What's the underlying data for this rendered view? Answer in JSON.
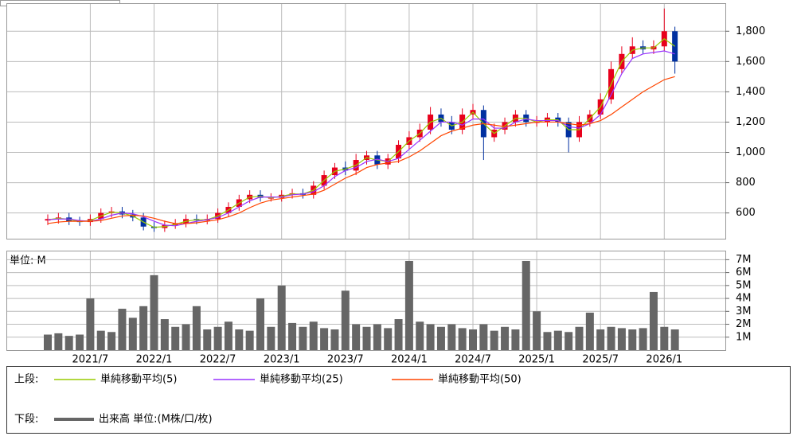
{
  "chart_data": [
    {
      "type": "candlestick",
      "categories": [
        null,
        null,
        null,
        null,
        "2021/7",
        null,
        null,
        null,
        null,
        null,
        "2022/1",
        null,
        null,
        null,
        null,
        null,
        "2022/7",
        null,
        null,
        null,
        null,
        null,
        "2023/1",
        null,
        null,
        null,
        null,
        null,
        "2023/7",
        null,
        null,
        null,
        null,
        null,
        "2024/1",
        null,
        null,
        null,
        null,
        null,
        "2024/7",
        null,
        null,
        null,
        null,
        null,
        "2025/1",
        null,
        null,
        null,
        null,
        null,
        "2025/7",
        null,
        null,
        null,
        null,
        null,
        "2026/1",
        null
      ],
      "open": [
        550,
        560,
        570,
        545,
        540,
        560,
        600,
        610,
        590,
        570,
        510,
        500,
        520,
        530,
        560,
        550,
        560,
        600,
        640,
        690,
        720,
        700,
        700,
        720,
        730,
        720,
        780,
        850,
        900,
        880,
        950,
        980,
        920,
        960,
        1050,
        1100,
        1150,
        1250,
        1200,
        1150,
        1250,
        1280,
        1100,
        1150,
        1200,
        1250,
        1200,
        1200,
        1230,
        1200,
        1100,
        1200,
        1250,
        1350,
        1550,
        1650,
        1700,
        1680,
        1700,
        1800
      ],
      "high": [
        590,
        600,
        600,
        575,
        590,
        630,
        640,
        640,
        620,
        600,
        540,
        550,
        560,
        590,
        590,
        590,
        630,
        670,
        720,
        750,
        750,
        730,
        750,
        760,
        760,
        810,
        880,
        930,
        940,
        990,
        1010,
        1010,
        990,
        1080,
        1140,
        1190,
        1300,
        1290,
        1240,
        1290,
        1320,
        1310,
        1190,
        1230,
        1280,
        1280,
        1240,
        1260,
        1260,
        1230,
        1240,
        1280,
        1390,
        1600,
        1700,
        1760,
        1740,
        1740,
        1950,
        1830
      ],
      "low": [
        520,
        530,
        520,
        515,
        515,
        535,
        570,
        565,
        545,
        485,
        475,
        475,
        495,
        505,
        525,
        525,
        535,
        575,
        615,
        665,
        675,
        675,
        675,
        695,
        695,
        695,
        755,
        825,
        850,
        850,
        920,
        890,
        890,
        930,
        1020,
        1070,
        1120,
        1170,
        1120,
        1120,
        1220,
        950,
        1070,
        1120,
        1170,
        1170,
        1170,
        1170,
        1170,
        1000,
        1070,
        1170,
        1220,
        1320,
        1520,
        1620,
        1650,
        1650,
        1670,
        1520
      ],
      "close": [
        560,
        570,
        545,
        540,
        560,
        600,
        610,
        590,
        570,
        510,
        500,
        520,
        530,
        560,
        550,
        560,
        600,
        640,
        690,
        720,
        700,
        700,
        720,
        730,
        720,
        780,
        850,
        900,
        880,
        950,
        980,
        920,
        960,
        1050,
        1100,
        1150,
        1250,
        1200,
        1150,
        1250,
        1280,
        1100,
        1150,
        1200,
        1250,
        1200,
        1200,
        1230,
        1200,
        1100,
        1200,
        1250,
        1350,
        1550,
        1650,
        1700,
        1680,
        1700,
        1800,
        1600
      ],
      "up_color": "#e8001c",
      "down_color": "#0030a0",
      "series": [
        {
          "name": "単純移動平均(5)",
          "color": "#99cc00",
          "values": [
            555,
            565,
            558,
            543,
            550,
            580,
            605,
            600,
            580,
            540,
            505,
            510,
            525,
            545,
            555,
            555,
            580,
            620,
            665,
            705,
            710,
            700,
            710,
            725,
            725,
            750,
            815,
            875,
            890,
            915,
            965,
            950,
            940,
            1005,
            1075,
            1125,
            1200,
            1225,
            1175,
            1200,
            1265,
            1190,
            1125,
            1175,
            1225,
            1225,
            1200,
            1215,
            1215,
            1150,
            1150,
            1225,
            1300,
            1450,
            1600,
            1675,
            1690,
            1690,
            1750,
            1700
          ]
        },
        {
          "name": "単純移動平均(25)",
          "color": "#9933ff",
          "values": [
            555,
            560,
            560,
            550,
            545,
            560,
            585,
            600,
            595,
            575,
            545,
            520,
            515,
            530,
            545,
            555,
            570,
            600,
            640,
            680,
            705,
            705,
            705,
            720,
            725,
            740,
            780,
            840,
            880,
            900,
            940,
            955,
            940,
            960,
            1020,
            1080,
            1140,
            1200,
            1200,
            1180,
            1220,
            1220,
            1160,
            1160,
            1200,
            1220,
            1210,
            1210,
            1210,
            1170,
            1160,
            1190,
            1250,
            1380,
            1520,
            1620,
            1650,
            1660,
            1670,
            1650
          ]
        },
        {
          "name": "単純移動平均(50)",
          "color": "#ff4500",
          "values": [
            530,
            540,
            545,
            545,
            545,
            550,
            565,
            580,
            585,
            580,
            565,
            545,
            530,
            530,
            535,
            545,
            555,
            575,
            600,
            635,
            665,
            685,
            695,
            705,
            715,
            725,
            750,
            790,
            830,
            860,
            900,
            920,
            930,
            940,
            970,
            1010,
            1060,
            1110,
            1140,
            1160,
            1180,
            1190,
            1180,
            1170,
            1180,
            1190,
            1200,
            1200,
            1200,
            1190,
            1180,
            1190,
            1210,
            1250,
            1300,
            1350,
            1400,
            1440,
            1480,
            1500
          ]
        }
      ],
      "ylim": [
        430,
        1980
      ],
      "yticks": [
        600,
        800,
        {
          "value": 1000,
          "label": "1,000"
        },
        {
          "value": 1200,
          "label": "1,200"
        },
        {
          "value": 1400,
          "label": "1,400"
        },
        {
          "value": 1600,
          "label": "1,600"
        },
        {
          "value": 1800,
          "label": "1,800"
        }
      ],
      "grid": true,
      "legend_label": "上段:"
    },
    {
      "type": "bar",
      "unit_label": "単位: M",
      "name": "出来高 単位:(M株/口/枚)",
      "color": "#666666",
      "values": [
        1.2,
        1.3,
        1.1,
        1.2,
        4.0,
        1.5,
        1.4,
        3.2,
        2.5,
        3.4,
        5.8,
        2.4,
        1.8,
        2.0,
        3.4,
        1.6,
        1.8,
        2.2,
        1.6,
        1.5,
        4.0,
        1.8,
        5.0,
        2.1,
        1.8,
        2.2,
        1.7,
        1.6,
        4.6,
        2.0,
        1.8,
        2.0,
        1.7,
        2.4,
        6.9,
        2.2,
        2.0,
        1.8,
        2.0,
        1.7,
        1.6,
        2.0,
        1.5,
        1.8,
        1.6,
        6.9,
        3.0,
        1.4,
        1.5,
        1.4,
        1.8,
        2.9,
        1.6,
        1.8,
        1.7,
        1.6,
        1.7,
        4.5,
        1.8,
        1.6
      ],
      "ylim": [
        0,
        7.7
      ],
      "yticks": [
        {
          "value": 1,
          "label": "1M"
        },
        {
          "value": 2,
          "label": "2M"
        },
        {
          "value": 3,
          "label": "3M"
        },
        {
          "value": 4,
          "label": "4M"
        },
        {
          "value": 5,
          "label": "5M"
        },
        {
          "value": 6,
          "label": "6M"
        },
        {
          "value": 7,
          "label": "7M"
        }
      ],
      "grid": true,
      "legend_label": "下段:"
    }
  ]
}
